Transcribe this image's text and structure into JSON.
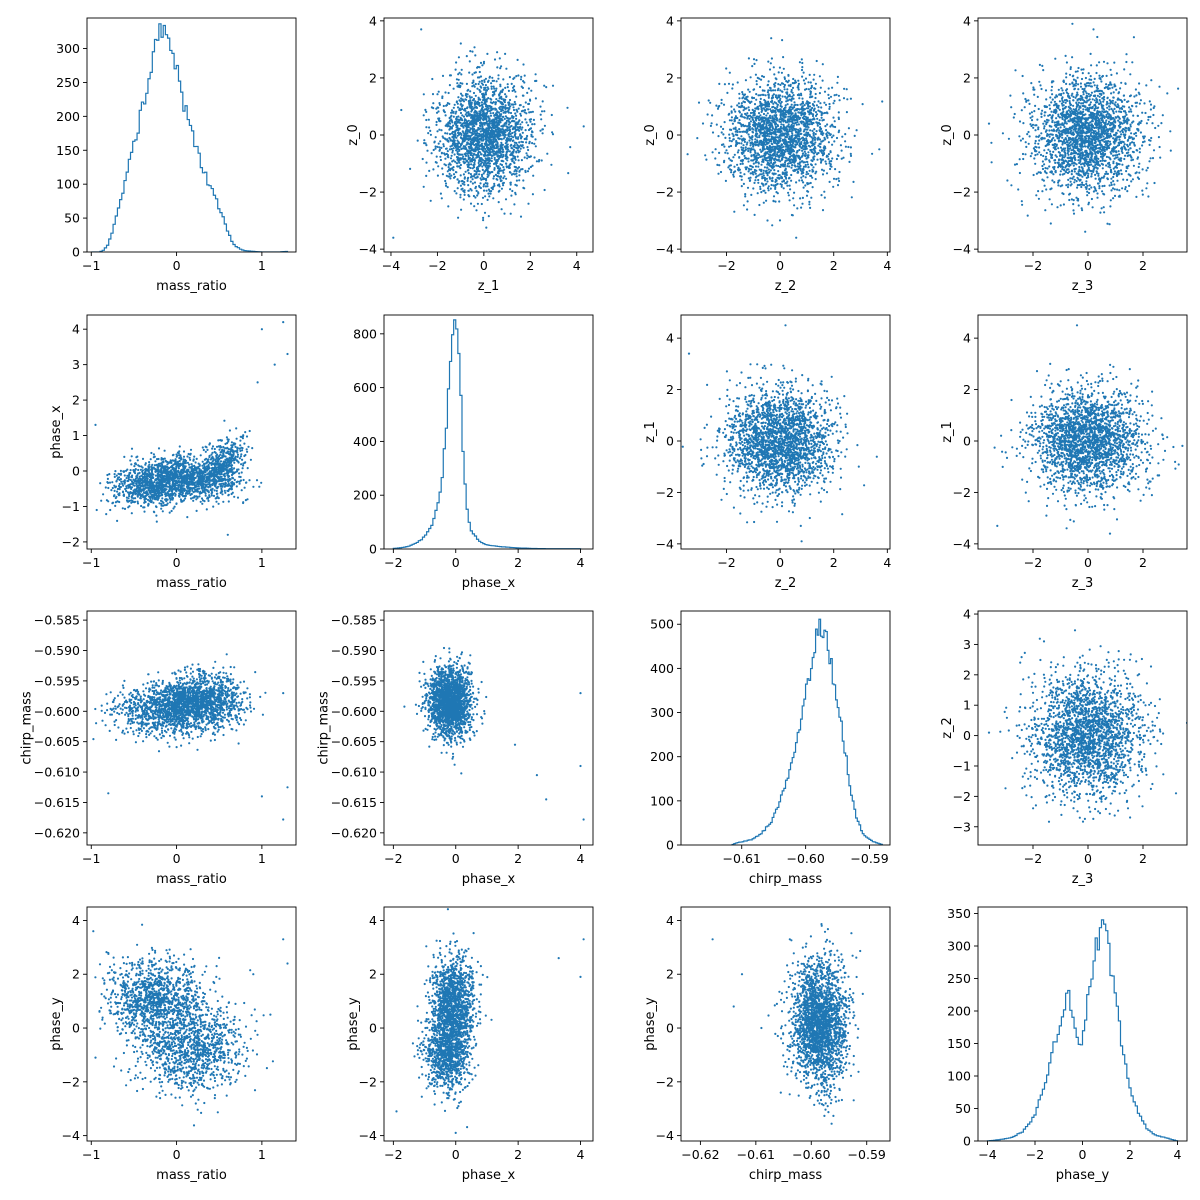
{
  "style": {
    "color": "#1f77b4",
    "axis_color": "#000000",
    "background": "#ffffff"
  },
  "chart_data": [
    {
      "id": "p00",
      "type": "histogram",
      "xlabel": "mass_ratio",
      "ylabel": "",
      "xlim": [
        -1.05,
        1.4
      ],
      "ylim": [
        0,
        345
      ],
      "xticks": [
        -1,
        0,
        1
      ],
      "yticks": [
        0,
        50,
        100,
        150,
        200,
        250,
        300
      ],
      "profile": [
        [
          -1.0,
          0
        ],
        [
          -0.95,
          0
        ],
        [
          -0.9,
          0
        ],
        [
          -0.85,
          3
        ],
        [
          -0.8,
          12
        ],
        [
          -0.75,
          30
        ],
        [
          -0.7,
          55
        ],
        [
          -0.65,
          75
        ],
        [
          -0.6,
          110
        ],
        [
          -0.55,
          135
        ],
        [
          -0.5,
          165
        ],
        [
          -0.45,
          185
        ],
        [
          -0.4,
          210
        ],
        [
          -0.35,
          240
        ],
        [
          -0.3,
          262
        ],
        [
          -0.25,
          300
        ],
        [
          -0.2,
          318
        ],
        [
          -0.15,
          330
        ],
        [
          -0.1,
          325
        ],
        [
          -0.05,
          310
        ],
        [
          0.0,
          270
        ],
        [
          0.05,
          245
        ],
        [
          0.1,
          210
        ],
        [
          0.15,
          190
        ],
        [
          0.2,
          165
        ],
        [
          0.25,
          145
        ],
        [
          0.3,
          128
        ],
        [
          0.35,
          110
        ],
        [
          0.4,
          95
        ],
        [
          0.45,
          80
        ],
        [
          0.5,
          65
        ],
        [
          0.55,
          50
        ],
        [
          0.6,
          30
        ],
        [
          0.65,
          15
        ],
        [
          0.7,
          8
        ],
        [
          0.75,
          4
        ],
        [
          0.8,
          2
        ],
        [
          0.9,
          1
        ],
        [
          1.0,
          0
        ],
        [
          1.1,
          0
        ],
        [
          1.2,
          0
        ],
        [
          1.3,
          1
        ]
      ]
    },
    {
      "id": "p01",
      "type": "scatter",
      "xlabel": "z_1",
      "ylabel": "z_0",
      "xlim": [
        -4.3,
        4.7
      ],
      "ylim": [
        -4.1,
        4.1
      ],
      "xticks": [
        -4,
        -2,
        0,
        2,
        4
      ],
      "yticks": [
        -4,
        -2,
        0,
        2,
        4
      ],
      "cloud": {
        "n": 2200,
        "components": [
          {
            "weight": 1,
            "mx": 0,
            "my": 0,
            "sx": 1,
            "sy": 1,
            "rho": 0
          }
        ]
      },
      "outliers": [
        [
          -2.7,
          3.7
        ],
        [
          4.3,
          0.3
        ],
        [
          -3.9,
          -3.6
        ]
      ]
    },
    {
      "id": "p02",
      "type": "scatter",
      "xlabel": "z_2",
      "ylabel": "z_0",
      "xlim": [
        -3.7,
        4.1
      ],
      "ylim": [
        -4.1,
        4.1
      ],
      "xticks": [
        -2,
        0,
        2,
        4
      ],
      "yticks": [
        -4,
        -2,
        0,
        2,
        4
      ],
      "cloud": {
        "n": 2200,
        "components": [
          {
            "weight": 1,
            "mx": 0,
            "my": 0,
            "sx": 1,
            "sy": 1,
            "rho": 0
          }
        ]
      },
      "outliers": [
        [
          0.6,
          -3.6
        ],
        [
          3.7,
          -0.5
        ]
      ]
    },
    {
      "id": "p03",
      "type": "scatter",
      "xlabel": "z_3",
      "ylabel": "z_0",
      "xlim": [
        -4.0,
        3.6
      ],
      "ylim": [
        -4.1,
        4.1
      ],
      "xticks": [
        -2,
        0,
        2
      ],
      "yticks": [
        -4,
        -2,
        0,
        2,
        4
      ],
      "cloud": {
        "n": 2200,
        "components": [
          {
            "weight": 1,
            "mx": 0,
            "my": 0,
            "sx": 1,
            "sy": 1,
            "rho": 0
          }
        ]
      },
      "outliers": [
        [
          0.2,
          3.7
        ],
        [
          -3.6,
          0.4
        ]
      ]
    },
    {
      "id": "p10",
      "type": "scatter",
      "xlabel": "mass_ratio",
      "ylabel": "phase_x",
      "xlim": [
        -1.05,
        1.4
      ],
      "ylim": [
        -2.2,
        4.4
      ],
      "xticks": [
        -1,
        0,
        1
      ],
      "yticks": [
        -2,
        -1,
        0,
        1,
        2,
        3,
        4
      ],
      "cloud": {
        "n": 2200,
        "components": [
          {
            "weight": 0.45,
            "mx": -0.25,
            "my": -0.35,
            "sx": 0.25,
            "sy": 0.32,
            "rho": 0.2
          },
          {
            "weight": 0.35,
            "mx": 0.2,
            "my": -0.2,
            "sx": 0.25,
            "sy": 0.3,
            "rho": -0.2
          },
          {
            "weight": 0.2,
            "mx": 0.55,
            "my": 0.2,
            "sx": 0.14,
            "sy": 0.4,
            "rho": 0.45
          }
        ]
      },
      "outliers": [
        [
          1.0,
          4.0
        ],
        [
          1.25,
          4.2
        ],
        [
          1.3,
          3.3
        ],
        [
          1.15,
          3.0
        ],
        [
          0.95,
          2.5
        ],
        [
          -0.95,
          1.3
        ],
        [
          0.6,
          -1.8
        ]
      ]
    },
    {
      "id": "p11",
      "type": "histogram",
      "xlabel": "phase_x",
      "ylabel": "",
      "xlim": [
        -2.3,
        4.4
      ],
      "ylim": [
        0,
        870
      ],
      "xticks": [
        -2,
        0,
        2,
        4
      ],
      "yticks": [
        0,
        200,
        400,
        600,
        800
      ],
      "profile": [
        [
          -2.0,
          2
        ],
        [
          -1.75,
          5
        ],
        [
          -1.5,
          10
        ],
        [
          -1.25,
          22
        ],
        [
          -1.0,
          45
        ],
        [
          -0.75,
          95
        ],
        [
          -0.5,
          200
        ],
        [
          -0.35,
          380
        ],
        [
          -0.25,
          560
        ],
        [
          -0.15,
          720
        ],
        [
          -0.05,
          830
        ],
        [
          0.05,
          800
        ],
        [
          0.15,
          600
        ],
        [
          0.25,
          320
        ],
        [
          0.35,
          150
        ],
        [
          0.5,
          70
        ],
        [
          0.75,
          30
        ],
        [
          1.0,
          15
        ],
        [
          1.5,
          8
        ],
        [
          2.0,
          4
        ],
        [
          2.5,
          2
        ],
        [
          3.0,
          1
        ],
        [
          4.0,
          1
        ]
      ]
    },
    {
      "id": "p12",
      "type": "scatter",
      "xlabel": "z_2",
      "ylabel": "z_1",
      "xlim": [
        -3.7,
        4.1
      ],
      "ylim": [
        -4.2,
        4.9
      ],
      "xticks": [
        -2,
        0,
        2,
        4
      ],
      "yticks": [
        -4,
        -2,
        0,
        2,
        4
      ],
      "cloud": {
        "n": 2200,
        "components": [
          {
            "weight": 1,
            "mx": 0,
            "my": 0,
            "sx": 1,
            "sy": 1,
            "rho": 0
          }
        ]
      },
      "outliers": [
        [
          0.2,
          4.5
        ],
        [
          -3.4,
          3.4
        ],
        [
          0.8,
          -3.9
        ]
      ]
    },
    {
      "id": "p13",
      "type": "scatter",
      "xlabel": "z_3",
      "ylabel": "z_1",
      "xlim": [
        -4.0,
        3.6
      ],
      "ylim": [
        -4.2,
        4.9
      ],
      "xticks": [
        -2,
        0,
        2
      ],
      "yticks": [
        -4,
        -2,
        0,
        2,
        4
      ],
      "cloud": {
        "n": 2200,
        "components": [
          {
            "weight": 1,
            "mx": 0,
            "my": 0,
            "sx": 1,
            "sy": 1,
            "rho": 0
          }
        ]
      },
      "outliers": [
        [
          -0.4,
          4.5
        ],
        [
          0.8,
          -3.6
        ],
        [
          -3.3,
          -3.3
        ]
      ]
    },
    {
      "id": "p20",
      "type": "scatter",
      "xlabel": "mass_ratio",
      "ylabel": "chirp_mass",
      "xlim": [
        -1.05,
        1.4
      ],
      "ylim": [
        -0.622,
        -0.5835
      ],
      "xticks": [
        -1,
        0,
        1
      ],
      "yticks": [
        -0.62,
        -0.615,
        -0.61,
        -0.605,
        -0.6,
        -0.595,
        -0.59,
        -0.585
      ],
      "ytick_labels": [
        "−0.620",
        "−0.615",
        "−0.610",
        "−0.605",
        "−0.600",
        "−0.595",
        "−0.590",
        "−0.585"
      ],
      "cloud": {
        "n": 2200,
        "components": [
          {
            "weight": 0.55,
            "mx": -0.05,
            "my": -0.5995,
            "sx": 0.32,
            "sy": 0.0022,
            "rho": 0.1
          },
          {
            "weight": 0.45,
            "mx": 0.3,
            "my": -0.5982,
            "sx": 0.25,
            "sy": 0.0022,
            "rho": 0
          }
        ]
      },
      "outliers": [
        [
          1.0,
          -0.614
        ],
        [
          1.25,
          -0.6178
        ],
        [
          1.3,
          -0.6125
        ],
        [
          1.25,
          -0.597
        ],
        [
          -0.8,
          -0.6135
        ]
      ]
    },
    {
      "id": "p21",
      "type": "scatter",
      "xlabel": "phase_x",
      "ylabel": "chirp_mass",
      "xlim": [
        -2.3,
        4.4
      ],
      "ylim": [
        -0.622,
        -0.5835
      ],
      "xticks": [
        -2,
        0,
        2,
        4
      ],
      "yticks": [
        -0.62,
        -0.615,
        -0.61,
        -0.605,
        -0.6,
        -0.595,
        -0.59,
        -0.585
      ],
      "ytick_labels": [
        "−0.620",
        "−0.615",
        "−0.610",
        "−0.605",
        "−0.600",
        "−0.595",
        "−0.590",
        "−0.585"
      ],
      "cloud": {
        "n": 2000,
        "components": [
          {
            "weight": 1,
            "mx": -0.2,
            "my": -0.5985,
            "sx": 0.35,
            "sy": 0.0028,
            "rho": 0
          }
        ]
      },
      "outliers": [
        [
          4.1,
          -0.6178
        ],
        [
          4.0,
          -0.609
        ],
        [
          4.0,
          -0.597
        ],
        [
          2.9,
          -0.6145
        ],
        [
          2.6,
          -0.6105
        ],
        [
          1.9,
          -0.6055
        ]
      ]
    },
    {
      "id": "p22",
      "type": "histogram",
      "xlabel": "chirp_mass",
      "ylabel": "",
      "xlim": [
        -0.6195,
        -0.5868
      ],
      "ylim": [
        0,
        530
      ],
      "xticks": [
        -0.61,
        -0.6,
        -0.59
      ],
      "xtick_labels": [
        "−0.61",
        "−0.60",
        "−0.59"
      ],
      "yticks": [
        0,
        100,
        200,
        300,
        400,
        500
      ],
      "profile": [
        [
          -0.6115,
          0
        ],
        [
          -0.611,
          4
        ],
        [
          -0.6085,
          12
        ],
        [
          -0.607,
          25
        ],
        [
          -0.6055,
          50
        ],
        [
          -0.6045,
          80
        ],
        [
          -0.6035,
          120
        ],
        [
          -0.6025,
          170
        ],
        [
          -0.6015,
          230
        ],
        [
          -0.6005,
          300
        ],
        [
          -0.5995,
          380
        ],
        [
          -0.5985,
          460
        ],
        [
          -0.5978,
          505
        ],
        [
          -0.597,
          480
        ],
        [
          -0.596,
          410
        ],
        [
          -0.595,
          330
        ],
        [
          -0.594,
          230
        ],
        [
          -0.593,
          130
        ],
        [
          -0.592,
          60
        ],
        [
          -0.591,
          25
        ],
        [
          -0.5895,
          8
        ],
        [
          -0.588,
          1
        ]
      ]
    },
    {
      "id": "p23",
      "type": "scatter",
      "xlabel": "z_3",
      "ylabel": "z_2",
      "xlim": [
        -4.0,
        3.6
      ],
      "ylim": [
        -3.6,
        4.1
      ],
      "xticks": [
        -2,
        0,
        2
      ],
      "yticks": [
        -3,
        -2,
        -1,
        0,
        1,
        2,
        3,
        4
      ],
      "cloud": {
        "n": 2200,
        "components": [
          {
            "weight": 1,
            "mx": 0,
            "my": 0,
            "sx": 1,
            "sy": 1,
            "rho": 0
          }
        ]
      },
      "outliers": [
        [
          -1.6,
          3.1
        ],
        [
          -3.6,
          0.1
        ],
        [
          3.2,
          -1.9
        ]
      ]
    },
    {
      "id": "p30",
      "type": "scatter",
      "xlabel": "mass_ratio",
      "ylabel": "phase_y",
      "xlim": [
        -1.05,
        1.4
      ],
      "ylim": [
        -4.2,
        4.5
      ],
      "xticks": [
        -1,
        0,
        1
      ],
      "yticks": [
        -4,
        -2,
        0,
        2,
        4
      ],
      "cloud": {
        "n": 2200,
        "components": [
          {
            "weight": 0.55,
            "mx": -0.25,
            "my": 1.0,
            "sx": 0.28,
            "sy": 0.8,
            "rho": 0
          },
          {
            "weight": 0.45,
            "mx": 0.2,
            "my": -0.8,
            "sx": 0.3,
            "sy": 0.75,
            "rho": 0
          }
        ]
      },
      "outliers": [
        [
          1.25,
          3.3
        ],
        [
          1.3,
          2.4
        ],
        [
          -0.95,
          -1.1
        ],
        [
          1.1,
          0.5
        ],
        [
          0.9,
          2.0
        ]
      ]
    },
    {
      "id": "p31",
      "type": "scatter",
      "xlabel": "phase_x",
      "ylabel": "phase_y",
      "xlim": [
        -2.3,
        4.4
      ],
      "ylim": [
        -4.2,
        4.5
      ],
      "xticks": [
        -2,
        0,
        2,
        4
      ],
      "yticks": [
        -4,
        -2,
        0,
        2,
        4
      ],
      "cloud": {
        "n": 2200,
        "components": [
          {
            "weight": 0.55,
            "mx": -0.1,
            "my": 1.0,
            "sx": 0.35,
            "sy": 0.85,
            "rho": 0
          },
          {
            "weight": 0.45,
            "mx": -0.25,
            "my": -0.9,
            "sx": 0.35,
            "sy": 0.75,
            "rho": 0
          }
        ]
      },
      "outliers": [
        [
          4.1,
          3.3
        ],
        [
          4.0,
          1.9
        ],
        [
          3.3,
          2.6
        ],
        [
          -1.9,
          -3.1
        ],
        [
          0.0,
          -3.9
        ]
      ]
    },
    {
      "id": "p32",
      "type": "scatter",
      "xlabel": "chirp_mass",
      "ylabel": "phase_y",
      "xlim": [
        -0.6235,
        -0.5858
      ],
      "ylim": [
        -4.2,
        4.5
      ],
      "xticks": [
        -0.62,
        -0.61,
        -0.6,
        -0.59
      ],
      "xtick_labels": [
        "−0.62",
        "−0.61",
        "−0.60",
        "−0.59"
      ],
      "yticks": [
        -4,
        -2,
        0,
        2,
        4
      ],
      "cloud": {
        "n": 2200,
        "components": [
          {
            "weight": 1,
            "mx": -0.5985,
            "my": 0.2,
            "sx": 0.0024,
            "sy": 1.15,
            "rho": 0
          }
        ]
      },
      "outliers": [
        [
          -0.6178,
          3.3
        ],
        [
          -0.6125,
          2.0
        ],
        [
          -0.614,
          0.8
        ],
        [
          -0.609,
          0.0
        ],
        [
          -0.6055,
          -2.4
        ]
      ]
    },
    {
      "id": "p33",
      "type": "histogram",
      "xlabel": "phase_y",
      "ylabel": "",
      "xlim": [
        -4.4,
        4.4
      ],
      "ylim": [
        0,
        360
      ],
      "xticks": [
        -4,
        -2,
        0,
        2,
        4
      ],
      "yticks": [
        0,
        50,
        100,
        150,
        200,
        250,
        300,
        350
      ],
      "profile": [
        [
          -4.0,
          0
        ],
        [
          -3.5,
          2
        ],
        [
          -3.0,
          5
        ],
        [
          -2.5,
          15
        ],
        [
          -2.0,
          40
        ],
        [
          -1.75,
          70
        ],
        [
          -1.5,
          100
        ],
        [
          -1.25,
          140
        ],
        [
          -1.0,
          170
        ],
        [
          -0.8,
          200
        ],
        [
          -0.6,
          235
        ],
        [
          -0.45,
          200
        ],
        [
          -0.3,
          165
        ],
        [
          -0.15,
          150
        ],
        [
          0.0,
          155
        ],
        [
          0.15,
          195
        ],
        [
          0.3,
          245
        ],
        [
          0.45,
          270
        ],
        [
          0.6,
          300
        ],
        [
          0.75,
          325
        ],
        [
          0.9,
          340
        ],
        [
          1.05,
          300
        ],
        [
          1.2,
          270
        ],
        [
          1.35,
          230
        ],
        [
          1.5,
          190
        ],
        [
          1.7,
          140
        ],
        [
          1.9,
          100
        ],
        [
          2.1,
          70
        ],
        [
          2.4,
          40
        ],
        [
          2.7,
          20
        ],
        [
          3.0,
          10
        ],
        [
          3.5,
          5
        ],
        [
          3.8,
          2
        ],
        [
          4.0,
          0
        ]
      ]
    }
  ]
}
